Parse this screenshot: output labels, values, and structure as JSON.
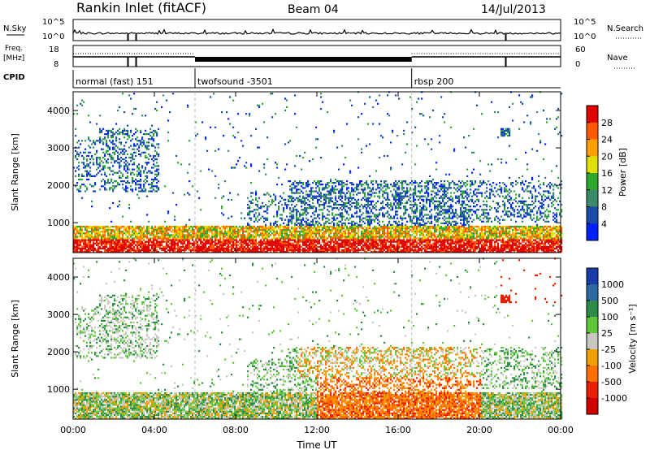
{
  "header": {
    "title": "Rankin Inlet (fitACF)",
    "beam": "Beam 04",
    "date": "14/Jul/2013"
  },
  "strips": {
    "nsky_label": "N.Sky",
    "nsky_ticks": [
      "10^5",
      "10^0"
    ],
    "nsearch_label": "N.Search",
    "nsearch_ticks": [
      "10^5",
      "10^0"
    ],
    "freq_label_1": "Freq.",
    "freq_label_2": "[MHz]",
    "freq_ticks": [
      "18",
      "8"
    ],
    "nave_label": "Nave",
    "nave_ticks": [
      "60",
      "0"
    ],
    "cpid_label": "CPID",
    "cpid_segments": [
      {
        "label": "normal (fast) 151",
        "start": "00:00",
        "end": "06:00"
      },
      {
        "label": "twofsound -3501",
        "start": "06:00",
        "end": "16:40"
      },
      {
        "label": "rbsp 200",
        "start": "16:40",
        "end": "24:00"
      }
    ]
  },
  "chart_data": [
    {
      "type": "heatmap",
      "panel": "power",
      "xlabel": "",
      "ylabel": "Slant Range [km]",
      "xlim": [
        "00:00",
        "24:00"
      ],
      "ylim": [
        200,
        4500
      ],
      "y_ticks": [
        "1000",
        "2000",
        "3000",
        "4000"
      ],
      "colorbar_label": "Power [dB]",
      "colorbar_ticks": [
        "28",
        "24",
        "20",
        "16",
        "12",
        "8",
        "4"
      ],
      "colorbar_colors": [
        "#e00000",
        "#ff5a00",
        "#ffa000",
        "#e0e000",
        "#2ea82e",
        "#3a8a6a",
        "#1a4ba8",
        "#0020ff"
      ]
    },
    {
      "type": "heatmap",
      "panel": "velocity",
      "xlabel": "Time UT",
      "ylabel": "Slant Range [km]",
      "xlim": [
        "00:00",
        "24:00"
      ],
      "ylim": [
        200,
        4500
      ],
      "x_ticks": [
        "00:00",
        "04:00",
        "08:00",
        "12:00",
        "16:00",
        "20:00",
        "00:00"
      ],
      "y_ticks": [
        "1000",
        "2000",
        "3000",
        "4000"
      ],
      "colorbar_label": "Velocity [m s⁻¹]",
      "colorbar_ticks": [
        "1000",
        "500",
        "100",
        "25",
        "-25",
        "-100",
        "-500",
        "-1000"
      ],
      "colorbar_colors": [
        "#1a3ca8",
        "#2a6aa0",
        "#2e8c4a",
        "#5ec83a",
        "#c8c8c0",
        "#f0a000",
        "#ff7000",
        "#e82000",
        "#d00000"
      ]
    }
  ]
}
